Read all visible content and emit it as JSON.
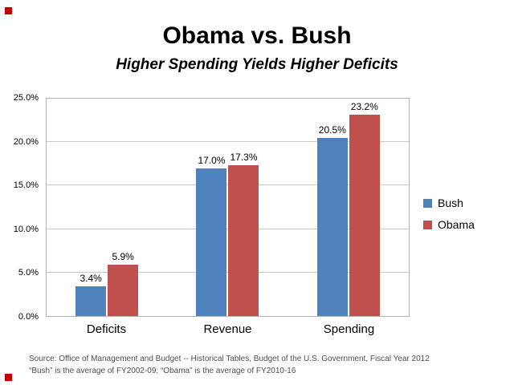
{
  "slide": {
    "title": "Obama vs. Bush",
    "subtitle": "Higher Spending Yields Higher Deficits",
    "marker_color": "#c00000",
    "source_line1": "Source: Office of Management and Budget -- Historical Tables, Budget of the U.S. Government, Fiscal Year 2012",
    "source_line2": "“Bush” is the average of FY2002-09; “Obama” is the average of FY2010-16"
  },
  "chart_data": {
    "type": "bar",
    "title": "Obama vs. Bush",
    "subtitle": "Higher Spending Yields Higher Deficits",
    "categories": [
      "Deficits",
      "Revenue",
      "Spending"
    ],
    "series": [
      {
        "name": "Bush",
        "color": "#4f81bd",
        "values": [
          3.4,
          17.0,
          20.5
        ],
        "labels": [
          "3.4%",
          "17.0%",
          "20.5%"
        ]
      },
      {
        "name": "Obama",
        "color": "#c0504d",
        "values": [
          5.9,
          17.3,
          23.2
        ],
        "labels": [
          "5.9%",
          "17.3%",
          "23.2%"
        ]
      }
    ],
    "ylim": [
      0,
      25
    ],
    "ytick_step": 5,
    "ytick_labels": [
      "0.0%",
      "5.0%",
      "10.0%",
      "15.0%",
      "20.0%",
      "25.0%"
    ],
    "grid": true,
    "legend_position": "right"
  }
}
